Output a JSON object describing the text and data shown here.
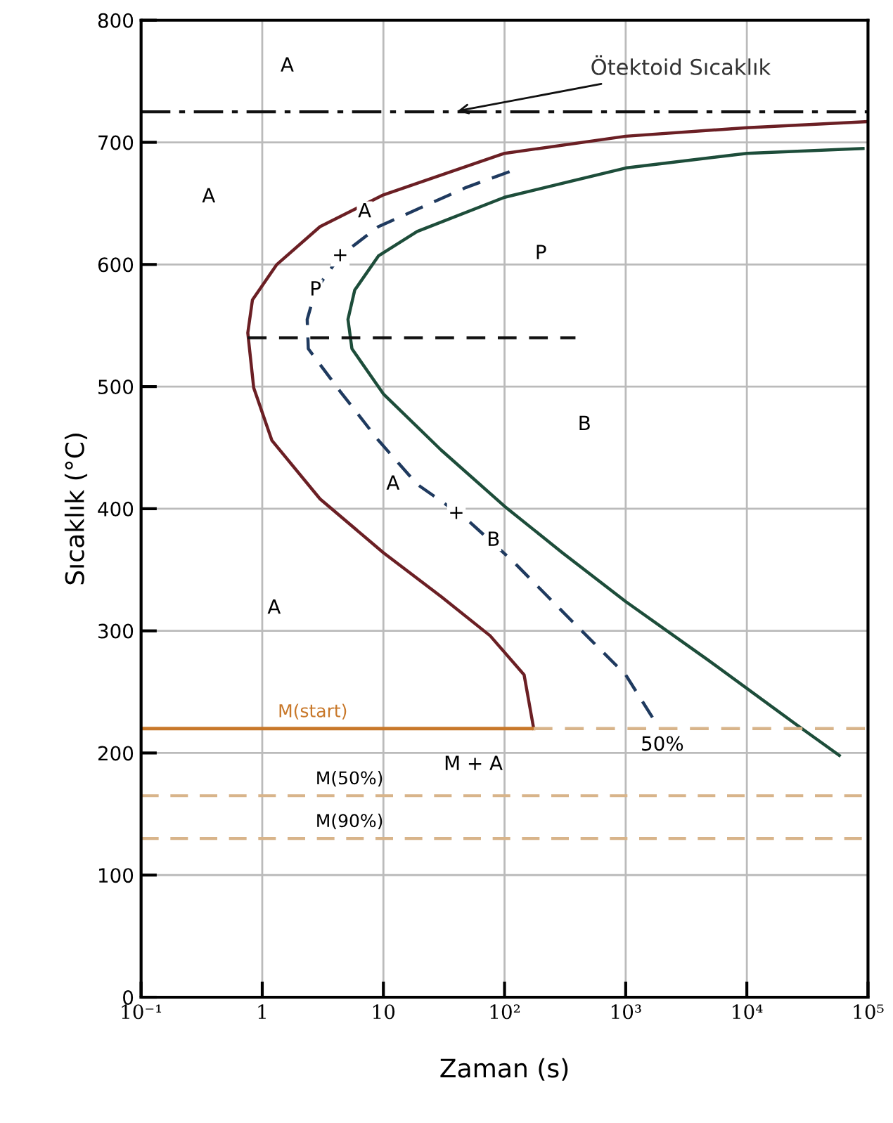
{
  "chart_data": {
    "type": "line",
    "xlabel": "Zaman (s)",
    "ylabel": "Sıcaklık (°C)",
    "log": "x",
    "grid": true,
    "legend": false,
    "xlim": [
      0.1,
      100000
    ],
    "xticks": [
      {
        "value": 0.1,
        "label": "10⁻¹"
      },
      1,
      10,
      {
        "value": 100,
        "label": "10²"
      },
      {
        "value": 1000,
        "label": "10³"
      },
      {
        "value": 10000,
        "label": "10⁴"
      },
      {
        "value": 100000,
        "label": "10⁵"
      }
    ],
    "ylim": [
      0,
      800
    ],
    "yticks": [
      0,
      100,
      200,
      300,
      400,
      500,
      600,
      700,
      800
    ],
    "series": [
      {
        "color": "#6b1f24",
        "line_style": "solid",
        "x": [
          100000,
          10000,
          1000,
          100,
          10,
          3.0,
          1.32,
          0.83,
          0.76,
          0.85,
          1.2,
          3.0,
          10,
          30,
          76,
          145,
          174
        ],
        "values": [
          717,
          712,
          705,
          691,
          657,
          631,
          600,
          571,
          544,
          499,
          456,
          408,
          364,
          328,
          296,
          264,
          220
        ]
      },
      {
        "color": "#1d4d3a",
        "line_style": "solid",
        "x": [
          91000,
          10000,
          1000,
          100,
          19,
          9.1,
          5.8,
          5.1,
          5.5,
          10,
          30,
          100,
          300,
          1000,
          4800,
          25000,
          58000
        ],
        "values": [
          695,
          691,
          679,
          655,
          627,
          607,
          579,
          555,
          531,
          494,
          448,
          402,
          364,
          324,
          276,
          224,
          198
        ]
      },
      {
        "color": "#1f3a5f",
        "line_style": "dashed",
        "x": [
          110,
          48,
          9.1,
          4.4,
          2.75,
          2.35,
          2.4,
          4.4,
          9.1,
          19,
          48,
          120,
          360,
          1000,
          1740
        ],
        "values": [
          676,
          663,
          631,
          607,
          579,
          555,
          531,
          496,
          456,
          420,
          392,
          356,
          308,
          264,
          226
        ]
      },
      {
        "color": "#111111",
        "line_style": "dashed",
        "x": [
          0.76,
          385
        ],
        "values": [
          540,
          540
        ]
      },
      {
        "name": "M(start)",
        "color": "#c8782a",
        "line_style": "solid",
        "x": [
          0.1,
          174
        ],
        "values": [
          220,
          220
        ]
      },
      {
        "color": "#d8b48a",
        "line_style": "dashed",
        "x": [
          174,
          100000
        ],
        "values": [
          220,
          220
        ]
      }
    ],
    "ref_lines": [
      {
        "axis": "y",
        "value": 725,
        "label": "Ötektoid Sıcaklık",
        "color": "#111111",
        "line_style": "dashdot"
      },
      {
        "axis": "y",
        "value": 165,
        "label": "M(50%)",
        "color": "#d8b48a",
        "line_style": "dashed"
      },
      {
        "axis": "y",
        "value": 130,
        "label": "M(90%)",
        "color": "#d8b48a",
        "line_style": "dashed"
      }
    ],
    "annotations": [
      "A",
      "A",
      {
        "text": "A",
        "x": 7.0,
        "y": 643
      },
      {
        "text": "+",
        "x": 4.4,
        "y": 607
      },
      {
        "text": "P",
        "x": 2.75,
        "y": 579
      },
      "P",
      "B",
      {
        "text": "A",
        "x": 12,
        "y": 420
      },
      {
        "text": "+",
        "x": 40,
        "y": 396
      },
      {
        "text": "B",
        "x": 81,
        "y": 374
      },
      "A",
      "M + A",
      "50%"
    ]
  }
}
